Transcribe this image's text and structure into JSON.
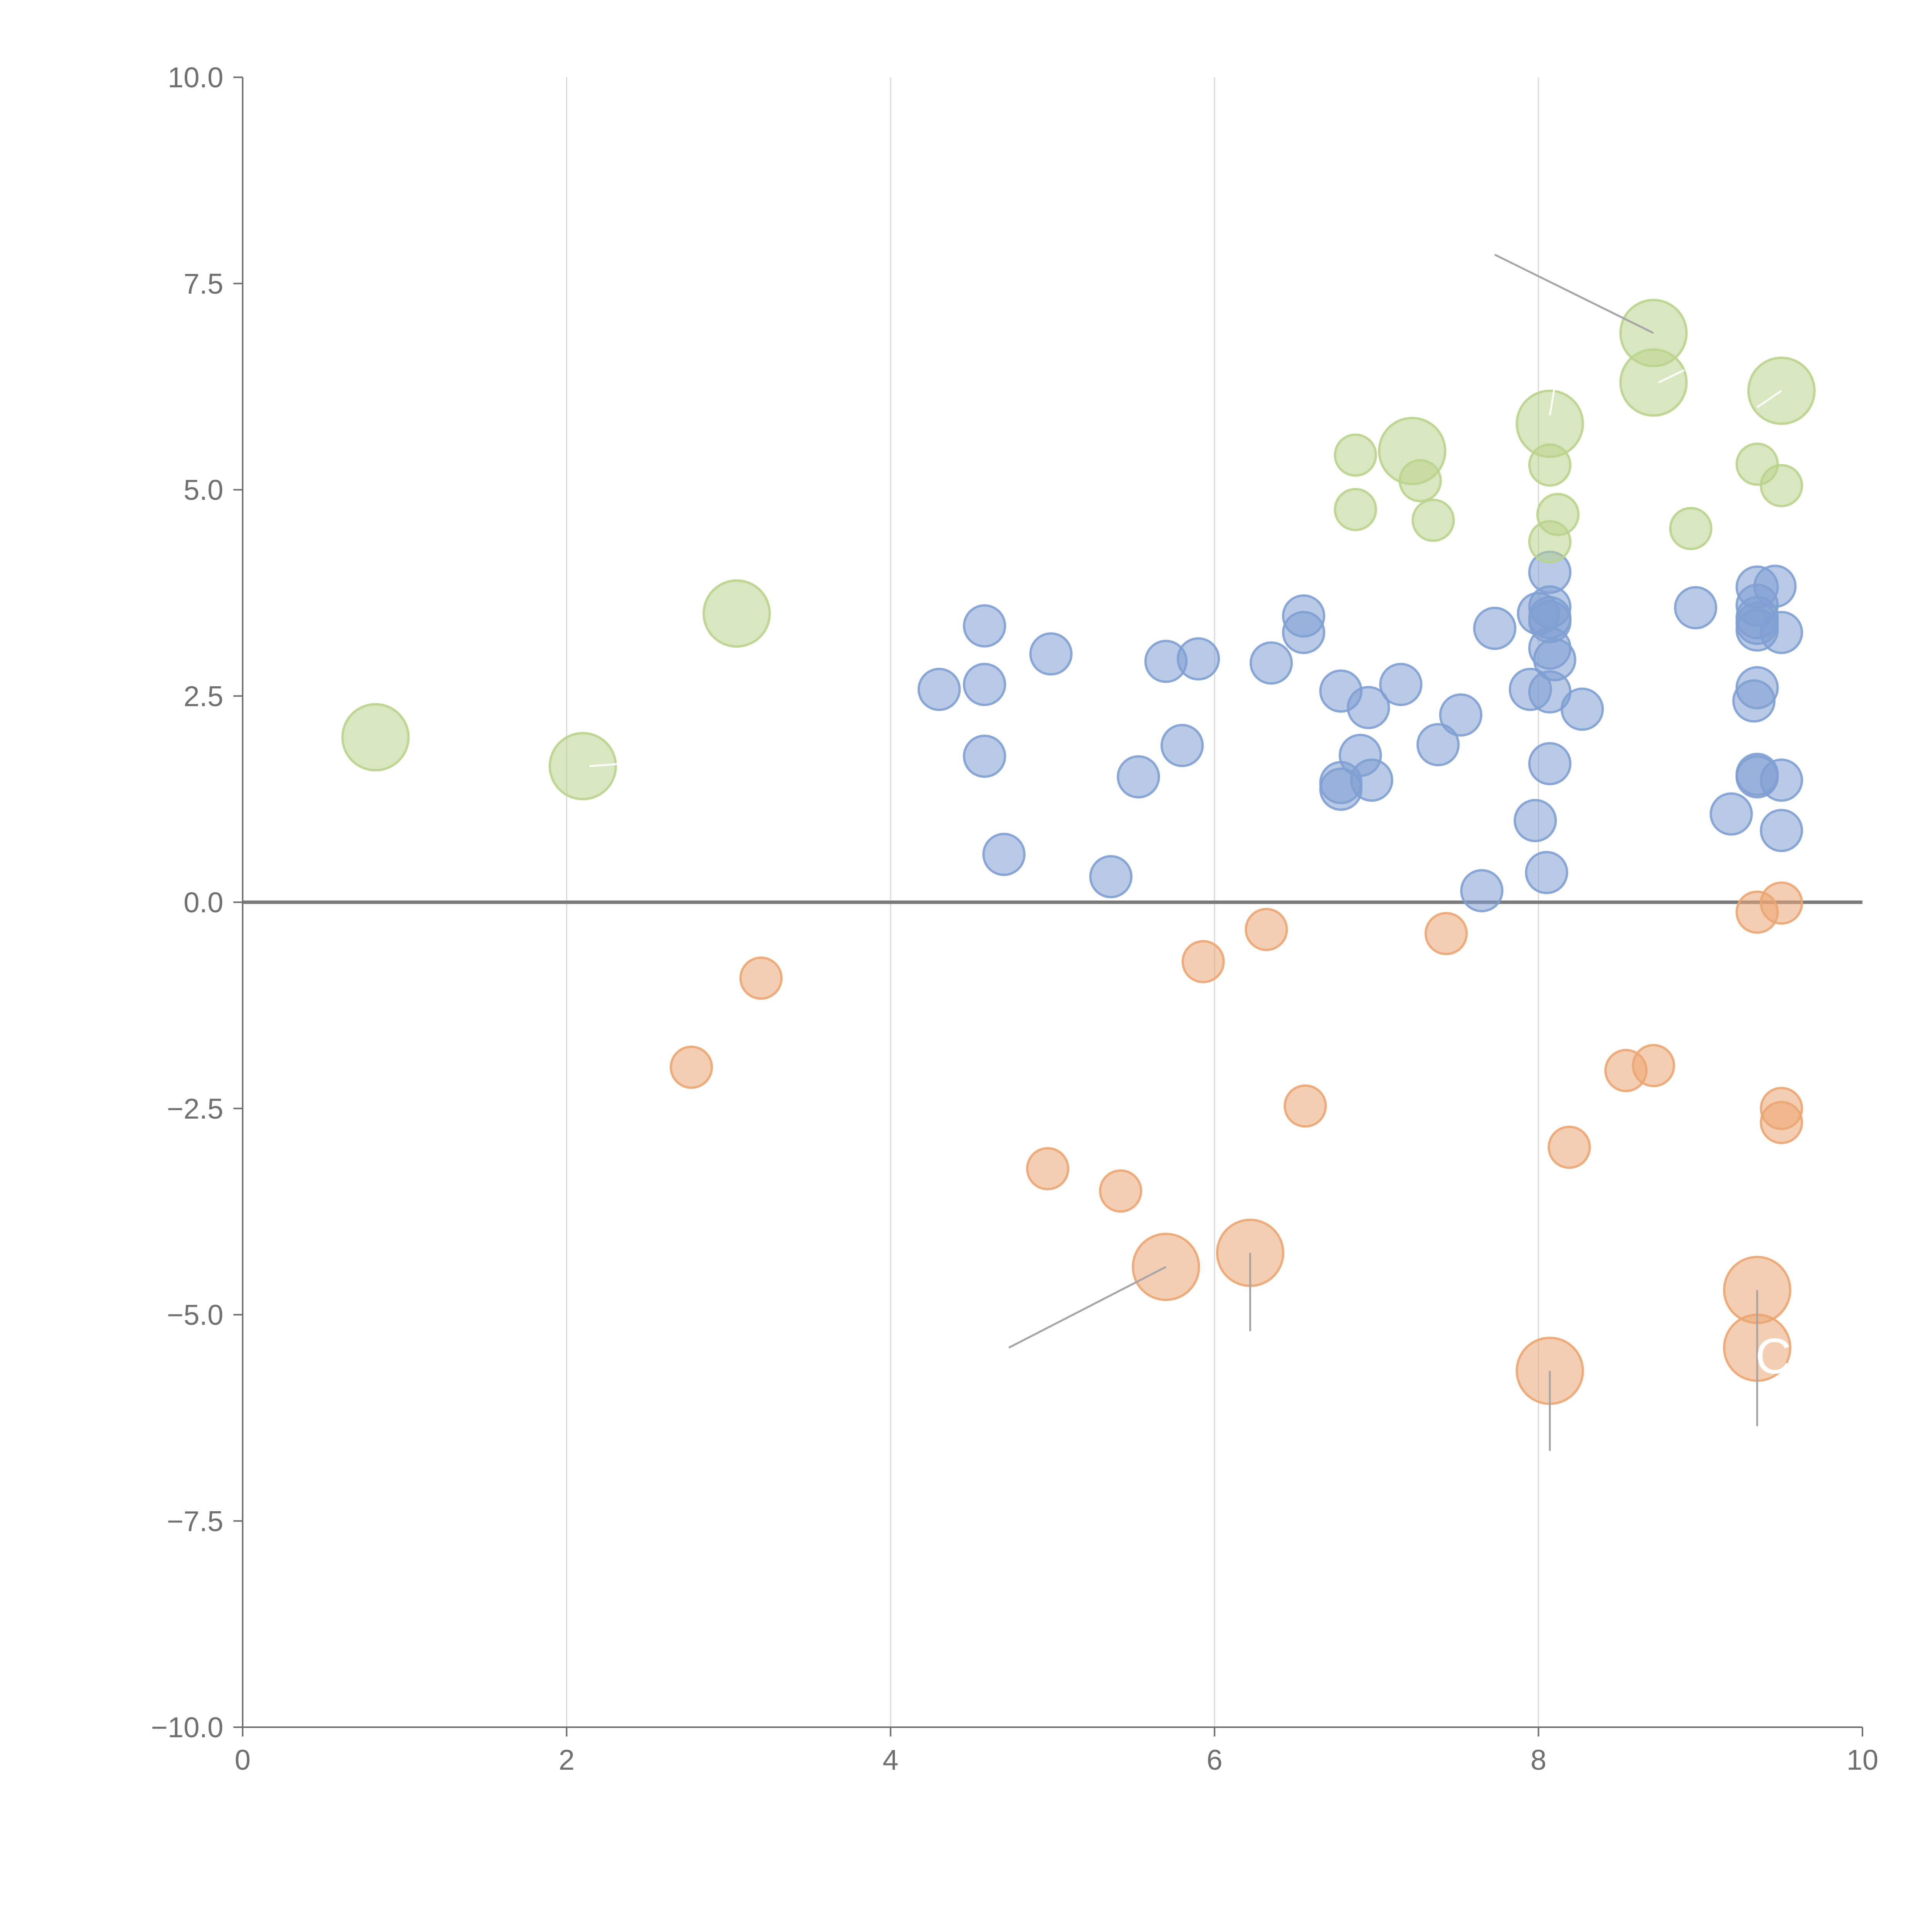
{
  "chart_data": {
    "type": "scatter",
    "title": "",
    "xlabel": "",
    "ylabel": "",
    "xlim": [
      0,
      10
    ],
    "ylim": [
      -10,
      10
    ],
    "x_ticks": [
      "0",
      "2",
      "4",
      "6",
      "8",
      "10"
    ],
    "y_ticks": [
      "10.0",
      "7.5",
      "5.0",
      "2.5",
      "0.0",
      "−2.5",
      "−5.0",
      "−7.5",
      "−10.0"
    ],
    "grid": "vertical gridlines at x ticks",
    "reference_line": {
      "y": 0
    },
    "legend": "none",
    "colors": {
      "blue": "#7f9fd2",
      "orange": "#eba572",
      "green": "#b9d38c"
    },
    "series": [
      {
        "color_key": "blue",
        "points": [
          {
            "x": 4.3,
            "y": 2.58,
            "size": 1
          },
          {
            "x": 4.58,
            "y": 3.35,
            "size": 1
          },
          {
            "x": 4.58,
            "y": 2.64,
            "size": 1
          },
          {
            "x": 4.58,
            "y": 1.77,
            "size": 1
          },
          {
            "x": 4.7,
            "y": 0.58,
            "size": 1
          },
          {
            "x": 4.99,
            "y": 3.01,
            "size": 1
          },
          {
            "x": 5.36,
            "y": 0.31,
            "size": 1
          },
          {
            "x": 5.53,
            "y": 1.52,
            "size": 1
          },
          {
            "x": 5.7,
            "y": 2.92,
            "size": 1
          },
          {
            "x": 5.8,
            "y": 1.9,
            "size": 1
          },
          {
            "x": 5.9,
            "y": 2.95,
            "size": 1
          },
          {
            "x": 6.35,
            "y": 2.9,
            "size": 1
          },
          {
            "x": 6.55,
            "y": 3.47,
            "size": 1
          },
          {
            "x": 6.55,
            "y": 3.27,
            "size": 1
          },
          {
            "x": 6.78,
            "y": 2.56,
            "size": 1
          },
          {
            "x": 6.78,
            "y": 1.45,
            "size": 1
          },
          {
            "x": 6.78,
            "y": 1.37,
            "size": 1
          },
          {
            "x": 6.9,
            "y": 1.78,
            "size": 1
          },
          {
            "x": 6.95,
            "y": 2.36,
            "size": 1
          },
          {
            "x": 6.97,
            "y": 1.48,
            "size": 1
          },
          {
            "x": 7.15,
            "y": 2.64,
            "size": 1
          },
          {
            "x": 7.38,
            "y": 1.91,
            "size": 1
          },
          {
            "x": 7.52,
            "y": 2.27,
            "size": 1
          },
          {
            "x": 7.65,
            "y": 0.14,
            "size": 1
          },
          {
            "x": 7.73,
            "y": 3.32,
            "size": 1
          },
          {
            "x": 7.95,
            "y": 2.58,
            "size": 1
          },
          {
            "x": 7.98,
            "y": 0.99,
            "size": 1
          },
          {
            "x": 8.0,
            "y": 3.5,
            "size": 1
          },
          {
            "x": 8.05,
            "y": 0.36,
            "size": 1
          },
          {
            "x": 8.07,
            "y": 4.0,
            "size": 1
          },
          {
            "x": 8.07,
            "y": 3.58,
            "size": 1
          },
          {
            "x": 8.07,
            "y": 3.45,
            "size": 1
          },
          {
            "x": 8.07,
            "y": 3.4,
            "size": 1
          },
          {
            "x": 8.07,
            "y": 3.08,
            "size": 1
          },
          {
            "x": 8.07,
            "y": 2.55,
            "size": 1
          },
          {
            "x": 8.07,
            "y": 1.68,
            "size": 1
          },
          {
            "x": 8.1,
            "y": 2.94,
            "size": 1
          },
          {
            "x": 8.27,
            "y": 2.34,
            "size": 1
          },
          {
            "x": 8.97,
            "y": 3.57,
            "size": 1
          },
          {
            "x": 9.19,
            "y": 1.07,
            "size": 1
          },
          {
            "x": 9.35,
            "y": 3.82,
            "size": 1
          },
          {
            "x": 9.35,
            "y": 3.6,
            "size": 1
          },
          {
            "x": 9.35,
            "y": 3.45,
            "size": 1
          },
          {
            "x": 9.35,
            "y": 3.38,
            "size": 1
          },
          {
            "x": 9.35,
            "y": 3.3,
            "size": 1
          },
          {
            "x": 9.35,
            "y": 2.6,
            "size": 1
          },
          {
            "x": 9.33,
            "y": 2.44,
            "size": 1
          },
          {
            "x": 9.35,
            "y": 1.55,
            "size": 1
          },
          {
            "x": 9.35,
            "y": 1.52,
            "size": 1
          },
          {
            "x": 9.46,
            "y": 3.83,
            "size": 1
          },
          {
            "x": 9.5,
            "y": 3.27,
            "size": 1
          },
          {
            "x": 9.5,
            "y": 1.48,
            "size": 1
          },
          {
            "x": 9.5,
            "y": 0.87,
            "size": 1
          }
        ]
      },
      {
        "color_key": "orange",
        "points": [
          {
            "x": 2.77,
            "y": -2.0,
            "size": 1
          },
          {
            "x": 3.2,
            "y": -0.92,
            "size": 1
          },
          {
            "x": 4.97,
            "y": -3.23,
            "size": 1
          },
          {
            "x": 5.42,
            "y": -3.5,
            "size": 1
          },
          {
            "x": 5.7,
            "y": -4.42,
            "size": 2.6
          },
          {
            "x": 5.93,
            "y": -0.72,
            "size": 1
          },
          {
            "x": 6.22,
            "y": -4.25,
            "size": 2.6
          },
          {
            "x": 6.32,
            "y": -0.33,
            "size": 1
          },
          {
            "x": 6.56,
            "y": -2.47,
            "size": 1
          },
          {
            "x": 7.43,
            "y": -0.38,
            "size": 1
          },
          {
            "x": 8.07,
            "y": -5.68,
            "size": 2.6
          },
          {
            "x": 8.19,
            "y": -2.97,
            "size": 1
          },
          {
            "x": 8.54,
            "y": -2.04,
            "size": 1
          },
          {
            "x": 8.71,
            "y": -1.98,
            "size": 1
          },
          {
            "x": 9.35,
            "y": -0.12,
            "size": 1
          },
          {
            "x": 9.35,
            "y": -4.7,
            "size": 2.6
          },
          {
            "x": 9.35,
            "y": -5.4,
            "size": 2.6
          },
          {
            "x": 9.5,
            "y": -0.01,
            "size": 1
          },
          {
            "x": 9.5,
            "y": -2.5,
            "size": 1
          },
          {
            "x": 9.5,
            "y": -2.67,
            "size": 1
          }
        ]
      },
      {
        "color_key": "green",
        "points": [
          {
            "x": 0.82,
            "y": 2.0,
            "size": 2.6
          },
          {
            "x": 2.1,
            "y": 1.65,
            "size": 2.6
          },
          {
            "x": 3.05,
            "y": 3.5,
            "size": 2.6
          },
          {
            "x": 6.87,
            "y": 5.42,
            "size": 1
          },
          {
            "x": 6.87,
            "y": 4.76,
            "size": 1
          },
          {
            "x": 7.22,
            "y": 5.47,
            "size": 2.6
          },
          {
            "x": 7.27,
            "y": 5.11,
            "size": 1
          },
          {
            "x": 7.35,
            "y": 4.63,
            "size": 1
          },
          {
            "x": 8.07,
            "y": 5.8,
            "size": 2.6
          },
          {
            "x": 8.07,
            "y": 5.3,
            "size": 1
          },
          {
            "x": 8.07,
            "y": 4.37,
            "size": 1
          },
          {
            "x": 8.12,
            "y": 4.7,
            "size": 1
          },
          {
            "x": 8.71,
            "y": 6.9,
            "size": 2.6
          },
          {
            "x": 8.71,
            "y": 6.3,
            "size": 2.6
          },
          {
            "x": 8.94,
            "y": 4.53,
            "size": 1
          },
          {
            "x": 9.35,
            "y": 5.31,
            "size": 1
          },
          {
            "x": 9.5,
            "y": 5.05,
            "size": 1
          },
          {
            "x": 9.5,
            "y": 6.2,
            "size": 2.6
          }
        ]
      }
    ],
    "annotations": [
      {
        "text": "C",
        "x": 9.45,
        "y": -5.5
      }
    ]
  }
}
